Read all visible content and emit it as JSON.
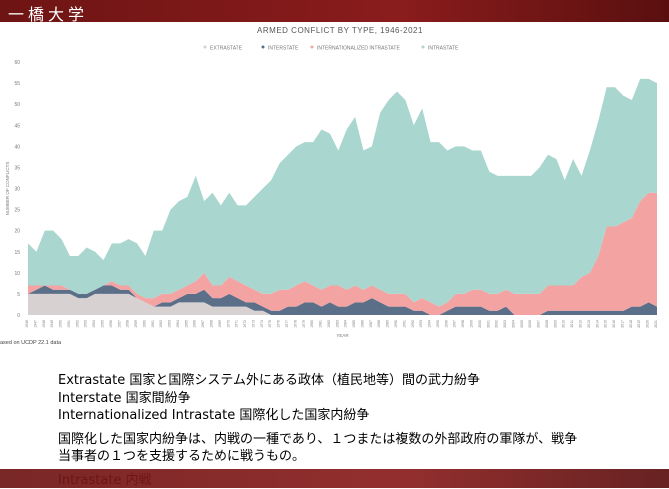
{
  "slide": {
    "logo": "一橋大学",
    "notes": [
      "Extrastate 国家と国際システム外にある政体（植民地等）間の武力紛争",
      "Interstate 国家間紛争",
      "Internationalized Intrastate 国際化した国家内紛争",
      "国際化した国家内紛争は、内戦の一種であり、１つまたは複数の外部政府の軍隊が、戦争",
      "当事者の１つを支援するために戦うもの。",
      "Intrastate 内戦"
    ]
  },
  "chart_data": {
    "type": "stacked_area",
    "title": "ARMED CONFLICT BY TYPE, 1946-2021",
    "x_label": "YEAR",
    "y_label": "NUMBER OF CONFLICTS",
    "source": "ased on UCDP 22.1 data",
    "x": [
      1946,
      1947,
      1948,
      1949,
      1950,
      1951,
      1952,
      1953,
      1954,
      1955,
      1956,
      1957,
      1958,
      1959,
      1960,
      1961,
      1962,
      1963,
      1964,
      1965,
      1966,
      1967,
      1968,
      1969,
      1970,
      1971,
      1972,
      1973,
      1974,
      1975,
      1976,
      1977,
      1978,
      1979,
      1980,
      1981,
      1982,
      1983,
      1984,
      1985,
      1986,
      1987,
      1988,
      1989,
      1990,
      1991,
      1992,
      1993,
      1994,
      1995,
      1996,
      1997,
      1998,
      1999,
      2000,
      2001,
      2002,
      2003,
      2004,
      2005,
      2006,
      2007,
      2008,
      2009,
      2010,
      2011,
      2012,
      2013,
      2014,
      2015,
      2016,
      2017,
      2018,
      2019,
      2020,
      2021
    ],
    "xlim": [
      1946,
      2021
    ],
    "ylim": [
      0,
      60
    ],
    "yticks": [
      0,
      5,
      10,
      15,
      20,
      25,
      30,
      35,
      40,
      45,
      50,
      55,
      60
    ],
    "grid": false,
    "legend": "top",
    "series": [
      {
        "name": "EXTRASTATE",
        "color": "#d8d1d1",
        "values": [
          5,
          5,
          5,
          5,
          5,
          5,
          4,
          4,
          5,
          5,
          5,
          5,
          5,
          4,
          3,
          2,
          2,
          2,
          3,
          3,
          3,
          3,
          2,
          2,
          2,
          2,
          2,
          1,
          1,
          0,
          0,
          0,
          0,
          0,
          0,
          0,
          0,
          0,
          0,
          0,
          0,
          0,
          0,
          0,
          0,
          0,
          0,
          0,
          0,
          0,
          0,
          0,
          0,
          0,
          0,
          0,
          0,
          0,
          0,
          0,
          0,
          0,
          0,
          0,
          0,
          0,
          0,
          0,
          0,
          0,
          0,
          0,
          0,
          0,
          0,
          0
        ]
      },
      {
        "name": "INTERSTATE",
        "color": "#5b6f88",
        "values": [
          0,
          1,
          2,
          1,
          1,
          1,
          1,
          1,
          1,
          2,
          2,
          1,
          1,
          0,
          0,
          0,
          1,
          1,
          1,
          2,
          2,
          3,
          2,
          2,
          3,
          2,
          1,
          2,
          1,
          1,
          1,
          2,
          2,
          3,
          3,
          2,
          3,
          2,
          2,
          3,
          3,
          4,
          3,
          2,
          2,
          2,
          1,
          1,
          0,
          0,
          1,
          2,
          2,
          2,
          2,
          1,
          1,
          2,
          0,
          0,
          0,
          0,
          1,
          1,
          1,
          1,
          1,
          1,
          1,
          1,
          1,
          1,
          2,
          2,
          3,
          2
        ]
      },
      {
        "name": "INTERNATIONALIZED INTRASTATE",
        "color": "#f4a3a3",
        "values": [
          2,
          1,
          0,
          1,
          1,
          0,
          0,
          0,
          0,
          0,
          1,
          1,
          1,
          1,
          1,
          2,
          2,
          2,
          2,
          2,
          3,
          4,
          3,
          3,
          4,
          4,
          4,
          3,
          3,
          4,
          5,
          4,
          5,
          5,
          4,
          4,
          4,
          5,
          4,
          4,
          3,
          3,
          3,
          3,
          3,
          3,
          2,
          3,
          3,
          2,
          2,
          3,
          3,
          4,
          4,
          4,
          4,
          4,
          5,
          5,
          5,
          5,
          6,
          6,
          6,
          6,
          8,
          9,
          13,
          20,
          20,
          21,
          21,
          25,
          26,
          27
        ]
      },
      {
        "name": "INTRASTATE",
        "color": "#a9d6cf",
        "values": [
          10,
          8,
          13,
          13,
          11,
          8,
          9,
          11,
          9,
          6,
          9,
          10,
          11,
          12,
          10,
          16,
          15,
          20,
          21,
          21,
          25,
          17,
          22,
          19,
          20,
          18,
          19,
          22,
          25,
          27,
          30,
          32,
          33,
          33,
          34,
          38,
          36,
          32,
          38,
          40,
          33,
          33,
          42,
          46,
          48,
          46,
          42,
          45,
          38,
          39,
          36,
          35,
          35,
          33,
          33,
          29,
          28,
          27,
          28,
          28,
          28,
          30,
          31,
          30,
          25,
          30,
          24,
          29,
          32,
          33,
          33,
          30,
          28,
          29,
          27,
          26
        ]
      }
    ]
  }
}
